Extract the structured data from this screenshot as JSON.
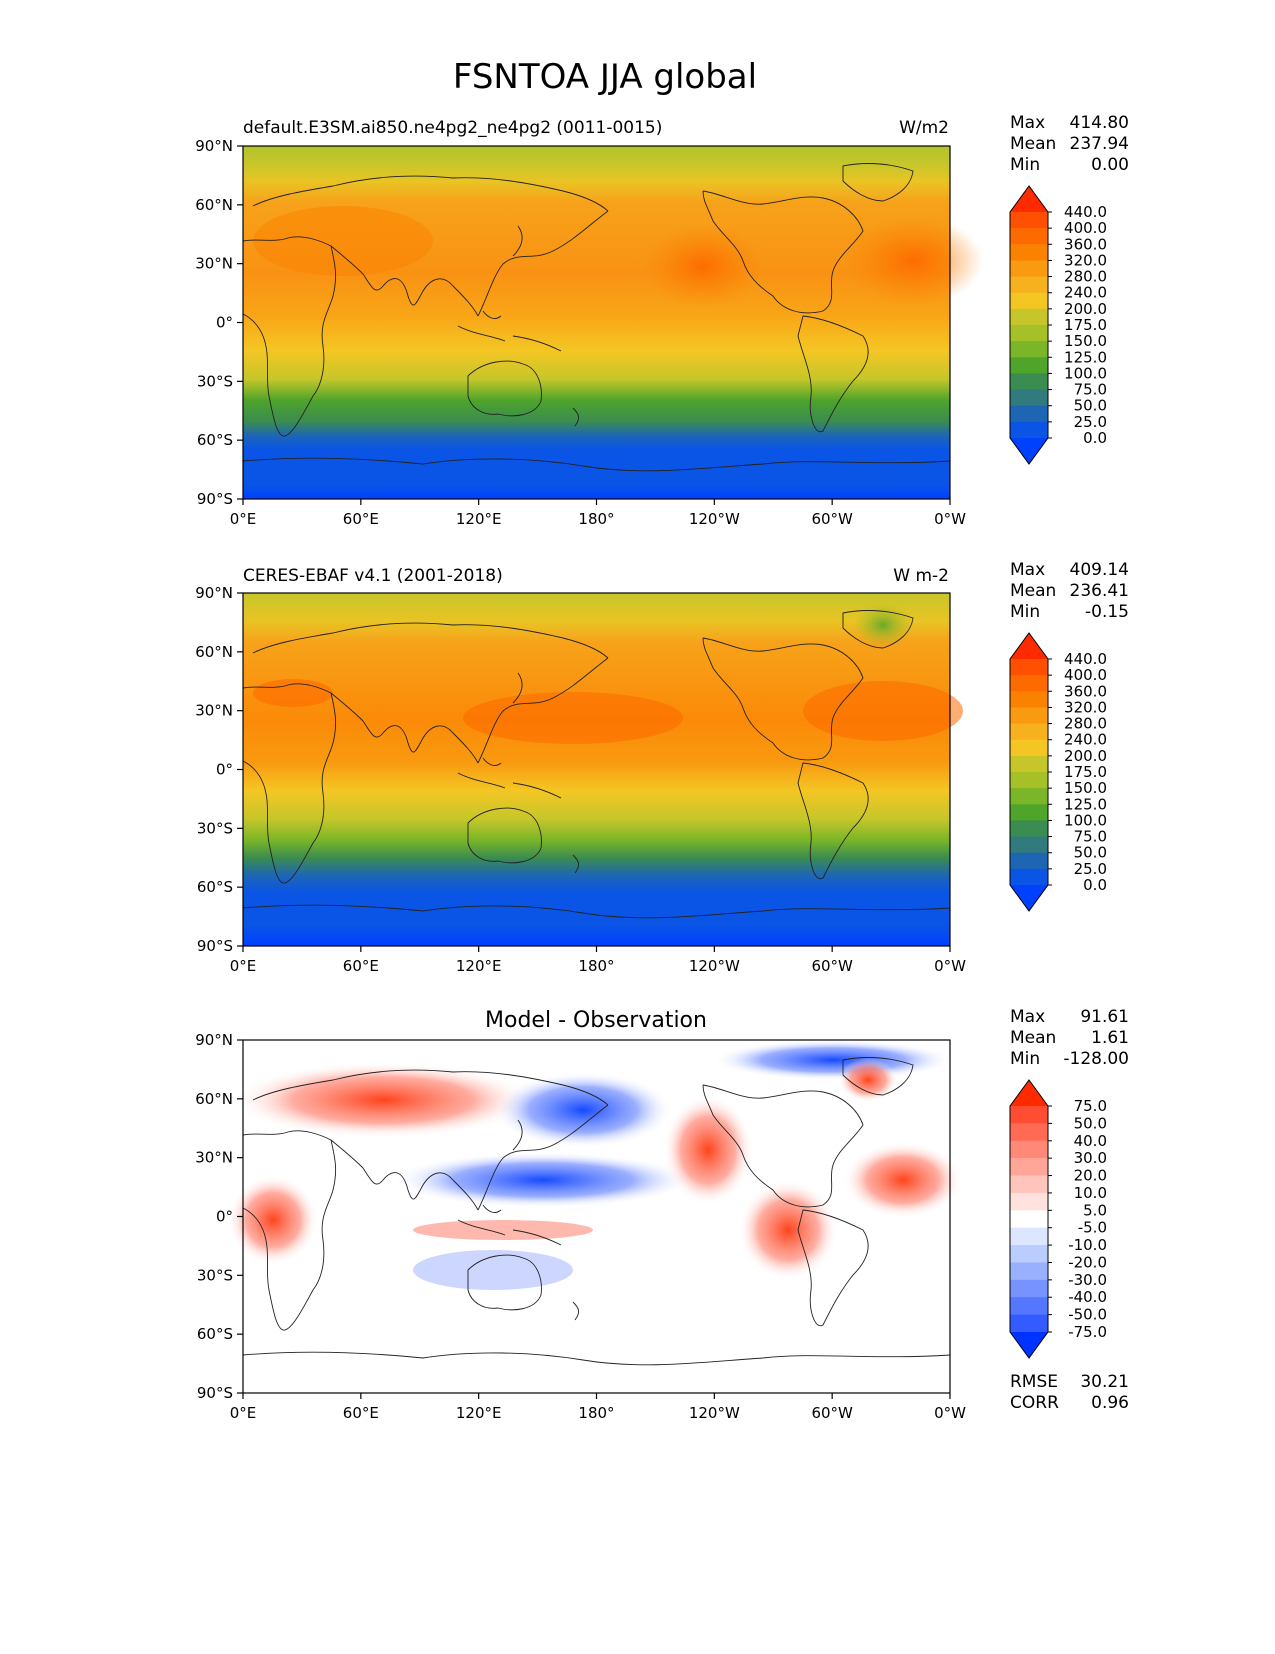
{
  "title": "FSNTOA JJA global",
  "axes": {
    "lat_ticks": [
      "90°N",
      "60°N",
      "30°N",
      "0°",
      "30°S",
      "60°S",
      "90°S"
    ],
    "lon_ticks": [
      "0°E",
      "60°E",
      "120°E",
      "180°",
      "120°W",
      "60°W",
      "0°W"
    ]
  },
  "panels": [
    {
      "name": "model",
      "left_title": "default.E3SM.ai850.ne4pg2_ne4pg2 (0011-0015)",
      "center_title": "",
      "units": "W/m2",
      "stats": {
        "max_label": "Max",
        "max": "414.80",
        "mean_label": "Mean",
        "mean": "237.94",
        "min_label": "Min",
        "min": "0.00"
      },
      "colorbar": {
        "levels": [
          "440.0",
          "400.0",
          "360.0",
          "320.0",
          "280.0",
          "240.0",
          "200.0",
          "175.0",
          "150.0",
          "125.0",
          "100.0",
          "75.0",
          "50.0",
          "25.0",
          "0.0"
        ],
        "colors": [
          "#ff2a00",
          "#ff4f00",
          "#fd6a00",
          "#fb8200",
          "#f99a10",
          "#f7b01e",
          "#f4c624",
          "#c6c62a",
          "#a6c028",
          "#7ab628",
          "#4fa42a",
          "#3b8c50",
          "#317a7e",
          "#1e66b4",
          "#0a55e6",
          "#0040ff"
        ]
      }
    },
    {
      "name": "observation",
      "left_title": "CERES-EBAF v4.1 (2001-2018)",
      "center_title": "",
      "units": "W m-2",
      "stats": {
        "max_label": "Max",
        "max": "409.14",
        "mean_label": "Mean",
        "mean": "236.41",
        "min_label": "Min",
        "min": "-0.15"
      },
      "colorbar": {
        "levels": [
          "440.0",
          "400.0",
          "360.0",
          "320.0",
          "280.0",
          "240.0",
          "200.0",
          "175.0",
          "150.0",
          "125.0",
          "100.0",
          "75.0",
          "50.0",
          "25.0",
          "0.0"
        ],
        "colors": [
          "#ff2a00",
          "#ff4f00",
          "#fd6a00",
          "#fb8200",
          "#f99a10",
          "#f7b01e",
          "#f4c624",
          "#c6c62a",
          "#a6c028",
          "#7ab628",
          "#4fa42a",
          "#3b8c50",
          "#317a7e",
          "#1e66b4",
          "#0a55e6",
          "#0040ff"
        ]
      }
    },
    {
      "name": "difference",
      "left_title": "",
      "center_title": "Model - Observation",
      "units": "",
      "stats": {
        "max_label": "Max",
        "max": "91.61",
        "mean_label": "Mean",
        "mean": "1.61",
        "min_label": "Min",
        "min": "-128.00"
      },
      "extra_stats": {
        "rmse_label": "RMSE",
        "rmse": "30.21",
        "corr_label": "CORR",
        "corr": "0.96"
      },
      "colorbar": {
        "levels": [
          "75.0",
          "50.0",
          "40.0",
          "30.0",
          "20.0",
          "10.0",
          "5.0",
          "-5.0",
          "-10.0",
          "-20.0",
          "-30.0",
          "-40.0",
          "-50.0",
          "-75.0"
        ],
        "colors": [
          "#ff2a00",
          "#ff4d33",
          "#ff6a55",
          "#ff8877",
          "#ffa699",
          "#ffc4bb",
          "#ffe2dd",
          "#ffffff",
          "#dde6ff",
          "#bbccff",
          "#99b0ff",
          "#7793ff",
          "#5577ff",
          "#335bff",
          "#0033ff"
        ]
      }
    }
  ]
}
